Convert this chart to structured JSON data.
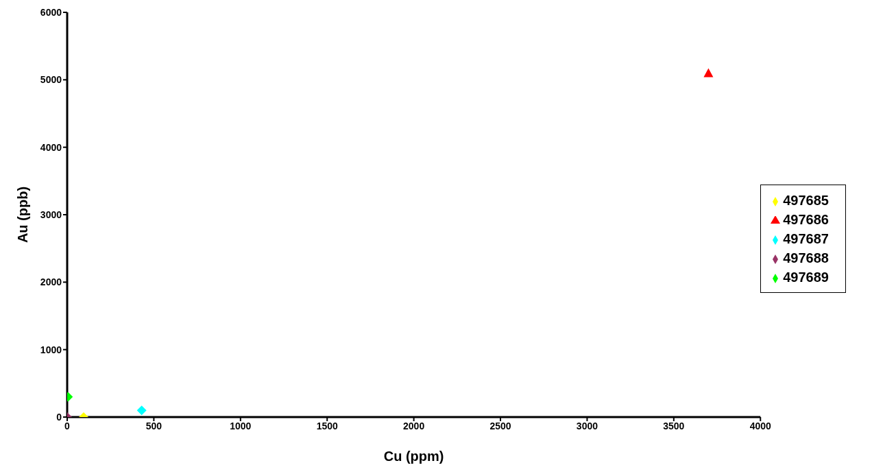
{
  "chart_data": {
    "type": "scatter",
    "xlabel": "Cu (ppm)",
    "ylabel": "Au (ppb)",
    "xlim": [
      0,
      4000
    ],
    "xticks": [
      0,
      500,
      1000,
      1500,
      2000,
      2500,
      3000,
      3500,
      4000
    ],
    "ylim": [
      0,
      6000
    ],
    "yticks": [
      0,
      1000,
      2000,
      3000,
      4000,
      5000,
      6000
    ],
    "grid": false,
    "legend": "right",
    "series": [
      {
        "name": "497685",
        "color": "#ffff00",
        "marker": "diamond",
        "x": [
          95
        ],
        "values": [
          0
        ]
      },
      {
        "name": "497686",
        "color": "#ff0000",
        "marker": "triangle",
        "x": [
          3700
        ],
        "values": [
          5100
        ]
      },
      {
        "name": "497687",
        "color": "#00ffff",
        "marker": "diamond",
        "x": [
          430
        ],
        "values": [
          100
        ]
      },
      {
        "name": "497688",
        "color": "#993366",
        "marker": "diamond",
        "x": [
          0
        ],
        "values": [
          0
        ]
      },
      {
        "name": "497689",
        "color": "#00ff00",
        "marker": "diamond",
        "x": [
          5
        ],
        "values": [
          300
        ]
      }
    ]
  }
}
